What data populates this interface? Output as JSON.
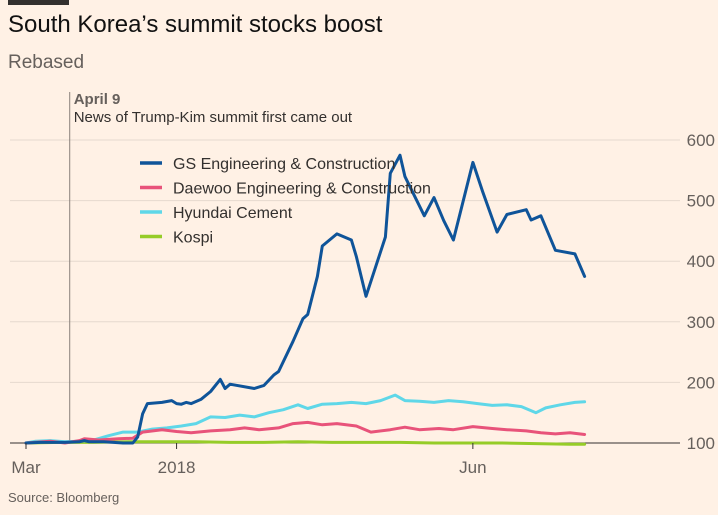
{
  "title": "South Korea’s summit stocks boost",
  "subtitle": "Rebased",
  "source": "Source: Bloomberg",
  "chart_data": {
    "type": "line",
    "title": "South Korea’s summit stocks boost",
    "subtitle": "Rebased",
    "x_tick_labels": [
      "Mar",
      "2018",
      "Jun"
    ],
    "x_ticks": [
      {
        "label": "Mar",
        "date": "2018-03-01"
      },
      {
        "label": "2018",
        "date": "2018-04-01"
      },
      {
        "label": "Jun",
        "date": "2018-06-01"
      }
    ],
    "xlim": [
      "2018-03-01",
      "2018-07-12"
    ],
    "y_ticks": [
      100,
      200,
      300,
      400,
      500,
      600
    ],
    "ylim": [
      100,
      600
    ],
    "y_axis_side": "right",
    "grid": true,
    "legend_position": "top-left",
    "annotation": {
      "date": "2018-03-10",
      "title": "April 9",
      "text": "News of Trump-Kim summit first came out"
    },
    "series": [
      {
        "name": "GS Engineering & Construction",
        "color": "#0f5499",
        "points": [
          [
            "2018-03-01",
            100
          ],
          [
            "2018-03-04",
            101
          ],
          [
            "2018-03-09",
            101
          ],
          [
            "2018-03-12",
            102
          ],
          [
            "2018-03-13",
            104
          ],
          [
            "2018-03-14",
            102
          ],
          [
            "2018-03-17",
            102
          ],
          [
            "2018-03-21",
            100
          ],
          [
            "2018-03-23",
            100
          ],
          [
            "2018-03-24",
            110
          ],
          [
            "2018-03-25",
            148
          ],
          [
            "2018-03-26",
            165
          ],
          [
            "2018-03-29",
            167
          ],
          [
            "2018-03-31",
            170
          ],
          [
            "2018-04-01",
            165
          ],
          [
            "2018-04-02",
            164
          ],
          [
            "2018-04-03",
            167
          ],
          [
            "2018-04-04",
            165
          ],
          [
            "2018-04-06",
            172
          ],
          [
            "2018-04-08",
            185
          ],
          [
            "2018-04-10",
            205
          ],
          [
            "2018-04-11",
            190
          ],
          [
            "2018-04-12",
            197
          ],
          [
            "2018-04-17",
            190
          ],
          [
            "2018-04-19",
            195
          ],
          [
            "2018-04-21",
            212
          ],
          [
            "2018-04-22",
            218
          ],
          [
            "2018-04-25",
            268
          ],
          [
            "2018-04-27",
            305
          ],
          [
            "2018-04-28",
            312
          ],
          [
            "2018-04-30",
            375
          ],
          [
            "2018-05-01",
            425
          ],
          [
            "2018-05-04",
            445
          ],
          [
            "2018-05-07",
            435
          ],
          [
            "2018-05-08",
            408
          ],
          [
            "2018-05-10",
            342
          ],
          [
            "2018-05-14",
            440
          ],
          [
            "2018-05-15",
            545
          ],
          [
            "2018-05-17",
            575
          ],
          [
            "2018-05-18",
            540
          ],
          [
            "2018-05-22",
            475
          ],
          [
            "2018-05-24",
            505
          ],
          [
            "2018-05-26",
            467
          ],
          [
            "2018-05-28",
            435
          ],
          [
            "2018-06-01",
            563
          ],
          [
            "2018-06-03",
            515
          ],
          [
            "2018-06-06",
            448
          ],
          [
            "2018-06-08",
            477
          ],
          [
            "2018-06-12",
            485
          ],
          [
            "2018-06-13",
            468
          ],
          [
            "2018-06-15",
            475
          ],
          [
            "2018-06-18",
            418
          ],
          [
            "2018-06-22",
            412
          ],
          [
            "2018-06-24",
            375
          ]
        ]
      },
      {
        "name": "Daewoo Engineering & Construction",
        "color": "#e8537a",
        "points": [
          [
            "2018-03-01",
            100
          ],
          [
            "2018-03-06",
            103
          ],
          [
            "2018-03-09",
            100
          ],
          [
            "2018-03-12",
            104
          ],
          [
            "2018-03-13",
            107
          ],
          [
            "2018-03-16",
            105
          ],
          [
            "2018-03-20",
            107
          ],
          [
            "2018-03-23",
            108
          ],
          [
            "2018-03-25",
            118
          ],
          [
            "2018-03-29",
            122
          ],
          [
            "2018-04-01",
            119
          ],
          [
            "2018-04-04",
            117
          ],
          [
            "2018-04-08",
            120
          ],
          [
            "2018-04-12",
            122
          ],
          [
            "2018-04-15",
            125
          ],
          [
            "2018-04-18",
            122
          ],
          [
            "2018-04-22",
            125
          ],
          [
            "2018-04-25",
            132
          ],
          [
            "2018-04-28",
            134
          ],
          [
            "2018-05-01",
            130
          ],
          [
            "2018-05-04",
            132
          ],
          [
            "2018-05-08",
            128
          ],
          [
            "2018-05-11",
            118
          ],
          [
            "2018-05-15",
            122
          ],
          [
            "2018-05-18",
            126
          ],
          [
            "2018-05-21",
            122
          ],
          [
            "2018-05-25",
            124
          ],
          [
            "2018-05-28",
            122
          ],
          [
            "2018-06-01",
            127
          ],
          [
            "2018-06-05",
            124
          ],
          [
            "2018-06-08",
            122
          ],
          [
            "2018-06-12",
            120
          ],
          [
            "2018-06-15",
            117
          ],
          [
            "2018-06-18",
            115
          ],
          [
            "2018-06-21",
            117
          ],
          [
            "2018-06-24",
            114
          ]
        ]
      },
      {
        "name": "Hyundai Cement",
        "color": "#5fd7e8",
        "points": [
          [
            "2018-03-01",
            100
          ],
          [
            "2018-03-03",
            103
          ],
          [
            "2018-03-06",
            104
          ],
          [
            "2018-03-09",
            102
          ],
          [
            "2018-03-12",
            103
          ],
          [
            "2018-03-15",
            105
          ],
          [
            "2018-03-18",
            112
          ],
          [
            "2018-03-21",
            118
          ],
          [
            "2018-03-24",
            118
          ],
          [
            "2018-03-27",
            123
          ],
          [
            "2018-03-30",
            125
          ],
          [
            "2018-04-02",
            128
          ],
          [
            "2018-04-05",
            132
          ],
          [
            "2018-04-08",
            143
          ],
          [
            "2018-04-11",
            142
          ],
          [
            "2018-04-14",
            146
          ],
          [
            "2018-04-17",
            143
          ],
          [
            "2018-04-20",
            150
          ],
          [
            "2018-04-23",
            155
          ],
          [
            "2018-04-26",
            163
          ],
          [
            "2018-04-28",
            157
          ],
          [
            "2018-05-01",
            164
          ],
          [
            "2018-05-04",
            165
          ],
          [
            "2018-05-07",
            167
          ],
          [
            "2018-05-10",
            165
          ],
          [
            "2018-05-13",
            170
          ],
          [
            "2018-05-16",
            179
          ],
          [
            "2018-05-18",
            170
          ],
          [
            "2018-05-21",
            169
          ],
          [
            "2018-05-24",
            167
          ],
          [
            "2018-05-27",
            170
          ],
          [
            "2018-05-30",
            168
          ],
          [
            "2018-06-02",
            165
          ],
          [
            "2018-06-05",
            162
          ],
          [
            "2018-06-08",
            163
          ],
          [
            "2018-06-11",
            160
          ],
          [
            "2018-06-14",
            150
          ],
          [
            "2018-06-16",
            158
          ],
          [
            "2018-06-19",
            163
          ],
          [
            "2018-06-22",
            167
          ],
          [
            "2018-06-24",
            168
          ]
        ]
      },
      {
        "name": "Kospi",
        "color": "#96cc28",
        "points": [
          [
            "2018-03-01",
            100
          ],
          [
            "2018-03-08",
            101
          ],
          [
            "2018-03-15",
            101
          ],
          [
            "2018-03-22",
            102
          ],
          [
            "2018-03-29",
            102
          ],
          [
            "2018-04-05",
            102
          ],
          [
            "2018-04-12",
            101
          ],
          [
            "2018-04-19",
            101
          ],
          [
            "2018-04-26",
            102
          ],
          [
            "2018-05-03",
            101
          ],
          [
            "2018-05-10",
            101
          ],
          [
            "2018-05-17",
            101
          ],
          [
            "2018-05-24",
            100
          ],
          [
            "2018-05-31",
            100
          ],
          [
            "2018-06-07",
            100
          ],
          [
            "2018-06-14",
            99
          ],
          [
            "2018-06-21",
            98
          ],
          [
            "2018-06-24",
            98
          ]
        ]
      }
    ]
  }
}
